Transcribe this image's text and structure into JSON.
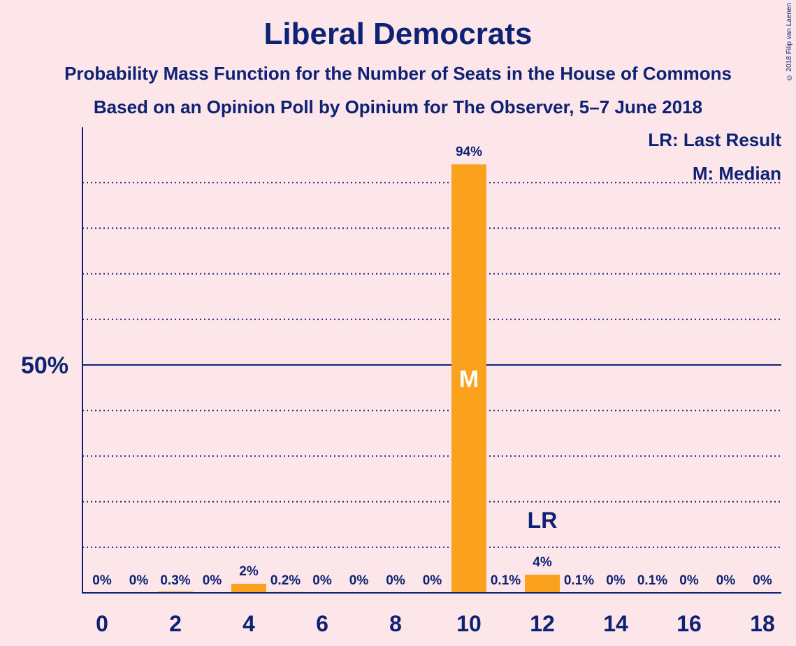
{
  "header": {
    "title": "Liberal Democrats",
    "subtitle1": "Probability Mass Function for the Number of Seats in the House of Commons",
    "subtitle2": "Based on an Opinion Poll by Opinium for The Observer, 5–7 June 2018",
    "copyright": "© 2018 Filip van Laenen"
  },
  "legend": {
    "last_result": "LR: Last Result",
    "median": "M: Median"
  },
  "colors": {
    "background": "#FDE6E9",
    "bar": "#FAA21E",
    "text": "#0D2275"
  },
  "chart_data": {
    "type": "bar",
    "x": [
      0,
      1,
      2,
      3,
      4,
      5,
      6,
      7,
      8,
      9,
      10,
      11,
      12,
      13,
      14,
      15,
      16,
      17,
      18
    ],
    "values": [
      0,
      0,
      0.3,
      0,
      2,
      0.2,
      0,
      0,
      0,
      0,
      94,
      0.1,
      4,
      0.1,
      0,
      0.1,
      0,
      0,
      0
    ],
    "data_labels": [
      "0%",
      "0%",
      "0.3%",
      "0%",
      "2%",
      "0.2%",
      "0%",
      "0%",
      "0%",
      "0%",
      "94%",
      "0.1%",
      "4%",
      "0.1%",
      "0%",
      "0.1%",
      "0%",
      "0%",
      "0%"
    ],
    "x_tick_labels": [
      "0",
      "2",
      "4",
      "6",
      "8",
      "10",
      "12",
      "14",
      "16",
      "18"
    ],
    "y_tick_label": "50%",
    "ylim": [
      0,
      100
    ],
    "median_seat": 10,
    "median_marker": "M",
    "last_result_seat": 12,
    "last_result_marker": "LR",
    "grid": true,
    "legend_position": "top-right"
  }
}
